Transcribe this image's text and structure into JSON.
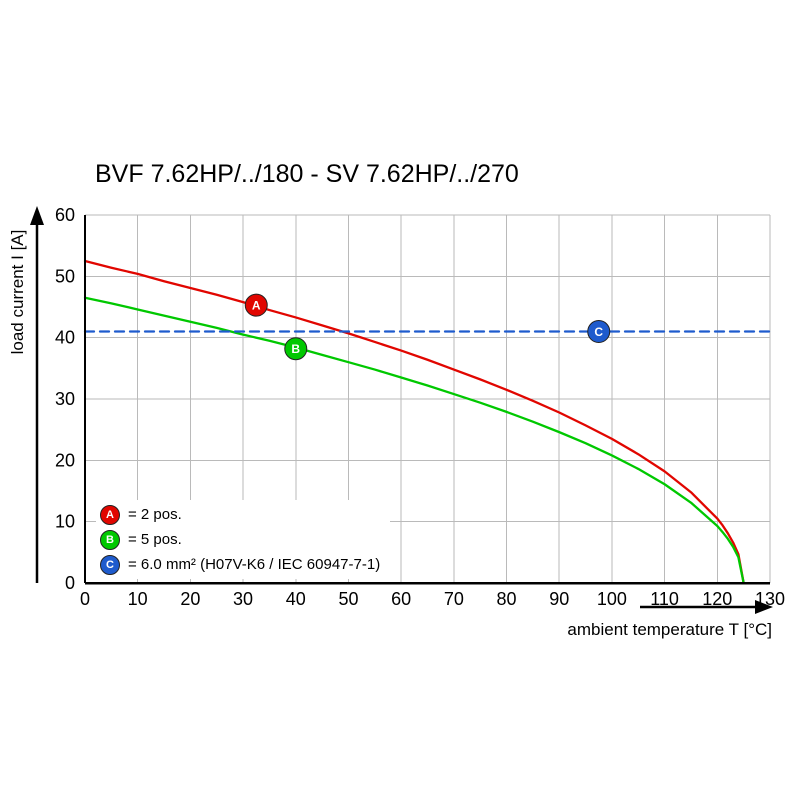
{
  "chart_data": {
    "type": "line",
    "title": "BVF 7.62HP/../180 - SV 7.62HP/../270",
    "xlabel": "ambient temperature T [°C]",
    "ylabel": "load current I [A]",
    "xlim": [
      0,
      130
    ],
    "ylim": [
      0,
      60
    ],
    "xticks": [
      0,
      10,
      20,
      30,
      40,
      50,
      60,
      70,
      80,
      90,
      100,
      110,
      120,
      130
    ],
    "yticks": [
      0,
      10,
      20,
      30,
      40,
      50,
      60
    ],
    "grid": true,
    "grid_color": "#bababa",
    "axis_color": "#000000",
    "series": [
      {
        "name": "A",
        "legend_label": "= 2 pos.",
        "color": "#e10600",
        "style": "solid",
        "x": [
          0,
          5,
          10,
          15,
          20,
          25,
          30,
          35,
          40,
          45,
          50,
          55,
          60,
          65,
          70,
          75,
          80,
          85,
          90,
          95,
          100,
          105,
          110,
          115,
          120,
          121,
          122,
          123,
          124,
          125
        ],
        "y": [
          52.5,
          51.4,
          50.4,
          49.2,
          48.1,
          47.0,
          45.8,
          44.5,
          43.3,
          42.0,
          40.7,
          39.3,
          37.9,
          36.4,
          34.8,
          33.2,
          31.5,
          29.7,
          27.8,
          25.7,
          23.5,
          21.0,
          18.2,
          14.8,
          10.5,
          9.4,
          8.1,
          6.6,
          4.7,
          0
        ]
      },
      {
        "name": "B",
        "legend_label": "= 5 pos.",
        "color": "#00c800",
        "style": "solid",
        "x": [
          0,
          5,
          10,
          15,
          20,
          25,
          30,
          35,
          40,
          45,
          50,
          55,
          60,
          65,
          70,
          75,
          80,
          85,
          90,
          95,
          100,
          105,
          110,
          115,
          120,
          121,
          122,
          123,
          124,
          125
        ],
        "y": [
          46.5,
          45.6,
          44.6,
          43.6,
          42.6,
          41.6,
          40.5,
          39.5,
          38.4,
          37.2,
          36.0,
          34.8,
          33.5,
          32.2,
          30.8,
          29.4,
          27.9,
          26.3,
          24.6,
          22.8,
          20.8,
          18.6,
          16.1,
          13.1,
          9.3,
          8.3,
          7.2,
          5.9,
          4.2,
          0
        ]
      },
      {
        "name": "C",
        "legend_label": "= 6.0 mm² (H07V-K6 / IEC 60947-7-1)",
        "color": "#1e5bcd",
        "style": "dashed",
        "x": [
          0,
          130
        ],
        "y": [
          41,
          41
        ]
      }
    ],
    "markers": [
      {
        "label": "A",
        "x": 32.5,
        "y": 45.3,
        "color": "#e10600"
      },
      {
        "label": "B",
        "x": 40.0,
        "y": 38.2,
        "color": "#00c800"
      },
      {
        "label": "C",
        "x": 97.5,
        "y": 41.0,
        "color": "#1e5bcd"
      }
    ],
    "legend": {
      "position": "inside-bottom-left",
      "items": [
        {
          "letter": "A",
          "text": "= 2 pos.",
          "color": "#e10600"
        },
        {
          "letter": "B",
          "text": "= 5 pos.",
          "color": "#00c800"
        },
        {
          "letter": "C",
          "text": "= 6.0 mm² (H07V-K6 / IEC 60947-7-1)",
          "color": "#1e5bcd"
        }
      ]
    }
  }
}
